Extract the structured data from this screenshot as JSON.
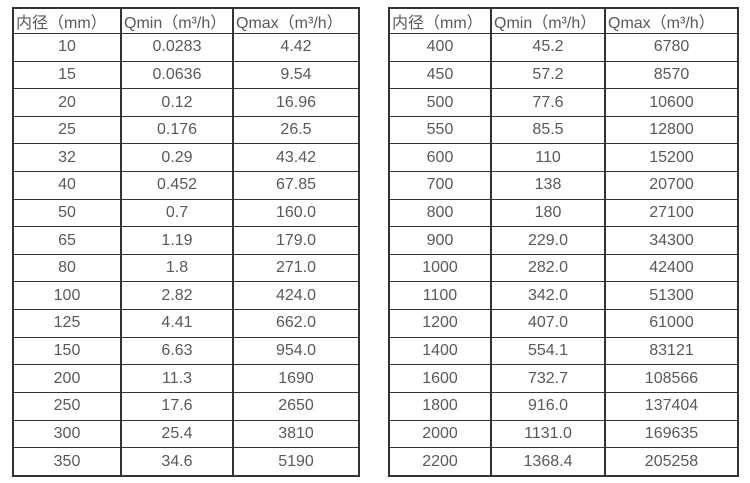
{
  "colors": {
    "background": "#ffffff",
    "border": "#333333",
    "text": "#595959"
  },
  "tables": [
    {
      "name": "small-diameter-flow-table",
      "headers": [
        "内径（mm）",
        "Qmin（m³/h）",
        "Qmax（m³/h）"
      ],
      "rows": [
        [
          "10",
          "0.0283",
          "4.42"
        ],
        [
          "15",
          "0.0636",
          "9.54"
        ],
        [
          "20",
          "0.12",
          "16.96"
        ],
        [
          "25",
          "0.176",
          "26.5"
        ],
        [
          "32",
          "0.29",
          "43.42"
        ],
        [
          "40",
          "0.452",
          "67.85"
        ],
        [
          "50",
          "0.7",
          "160.0"
        ],
        [
          "65",
          "1.19",
          "179.0"
        ],
        [
          "80",
          "1.8",
          "271.0"
        ],
        [
          "100",
          "2.82",
          "424.0"
        ],
        [
          "125",
          "4.41",
          "662.0"
        ],
        [
          "150",
          "6.63",
          "954.0"
        ],
        [
          "200",
          "11.3",
          "1690"
        ],
        [
          "250",
          "17.6",
          "2650"
        ],
        [
          "300",
          "25.4",
          "3810"
        ],
        [
          "350",
          "34.6",
          "5190"
        ]
      ]
    },
    {
      "name": "large-diameter-flow-table",
      "headers": [
        "内径（mm）",
        "Qmin（m³/h）",
        "Qmax（m³/h）"
      ],
      "rows": [
        [
          "400",
          "45.2",
          "6780"
        ],
        [
          "450",
          "57.2",
          "8570"
        ],
        [
          "500",
          "77.6",
          "10600"
        ],
        [
          "550",
          "85.5",
          "12800"
        ],
        [
          "600",
          "110",
          "15200"
        ],
        [
          "700",
          "138",
          "20700"
        ],
        [
          "800",
          "180",
          "27100"
        ],
        [
          "900",
          "229.0",
          "34300"
        ],
        [
          "1000",
          "282.0",
          "42400"
        ],
        [
          "1100",
          "342.0",
          "51300"
        ],
        [
          "1200",
          "407.0",
          "61000"
        ],
        [
          "1400",
          "554.1",
          "83121"
        ],
        [
          "1600",
          "732.7",
          "108566"
        ],
        [
          "1800",
          "916.0",
          "137404"
        ],
        [
          "2000",
          "1131.0",
          "169635"
        ],
        [
          "2200",
          "1368.4",
          "205258"
        ]
      ]
    }
  ]
}
